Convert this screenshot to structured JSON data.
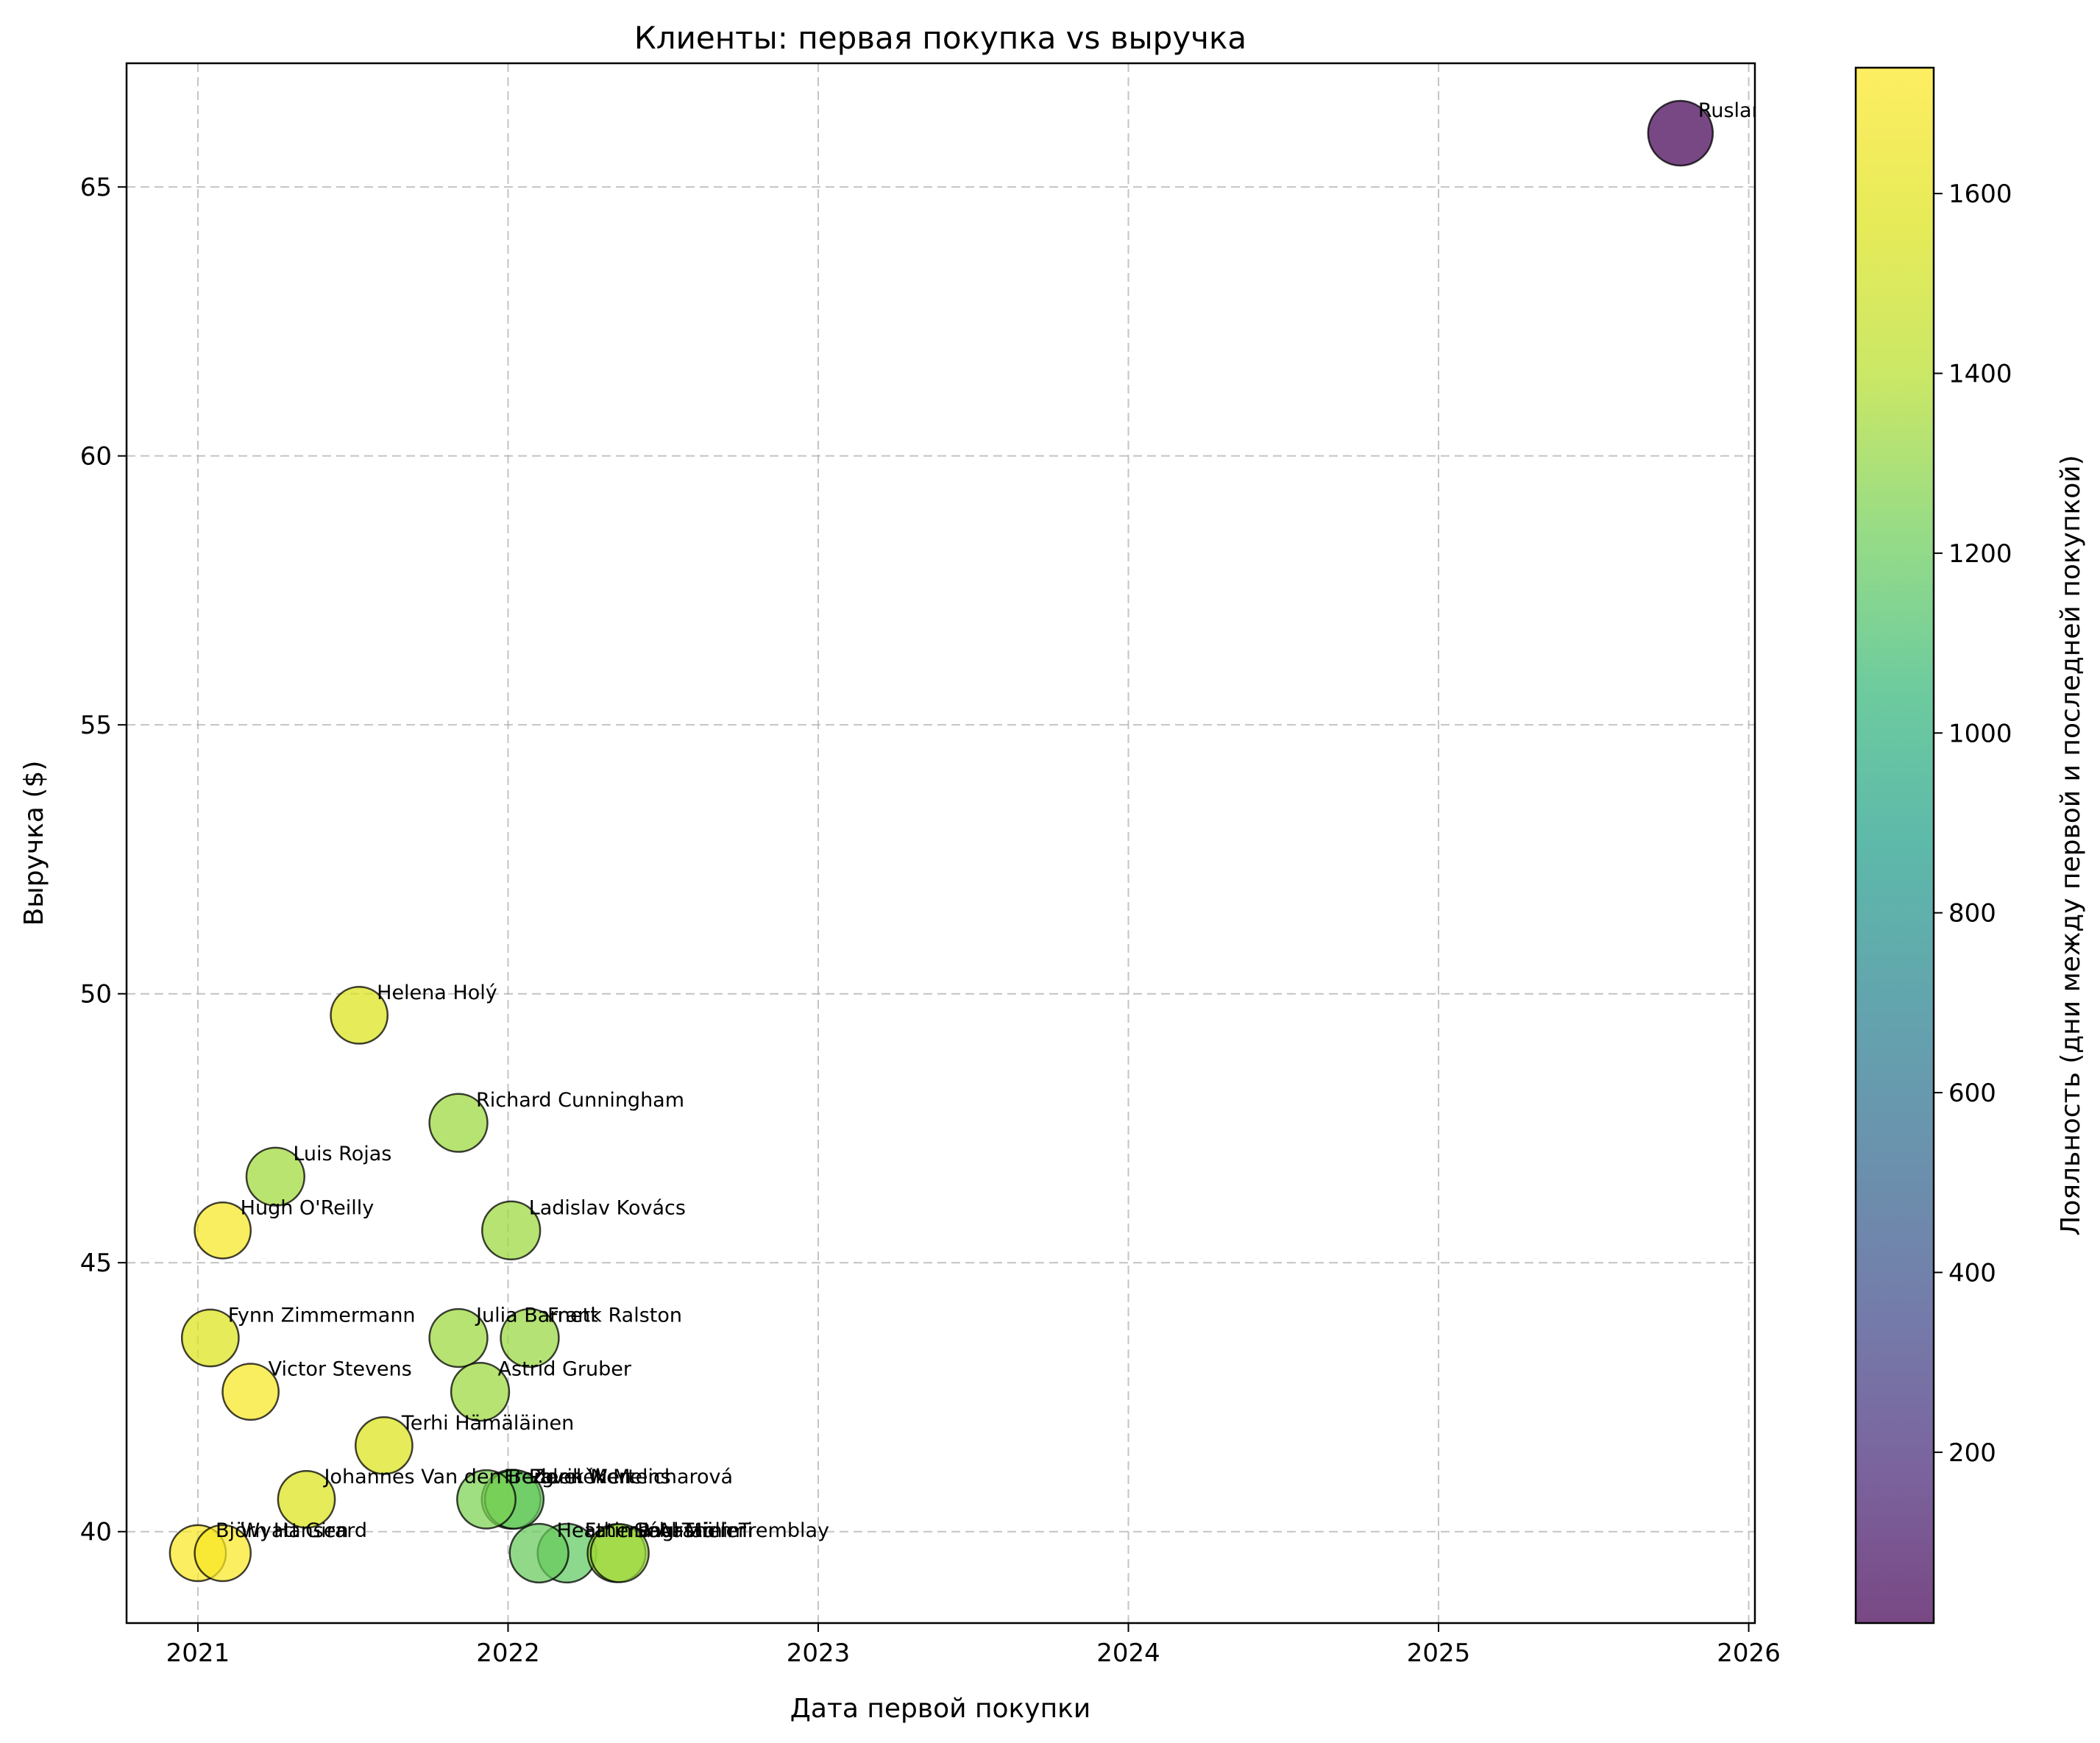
{
  "chart_data": {
    "type": "scatter",
    "title": "Клиенты: первая покупка vs выручка",
    "xlabel": "Дата первой покупки",
    "ylabel": "Выручка ($)",
    "colorbar_label": "Лояльность (дни между первой и последней покупкой)",
    "colormap": "viridis",
    "xlim": [
      2020.77,
      2026.02
    ],
    "ylim": [
      38.3,
      67.3
    ],
    "x_ticks": [
      "2021",
      "2022",
      "2023",
      "2024",
      "2025",
      "2026"
    ],
    "y_ticks": [
      "40",
      "45",
      "50",
      "55",
      "60",
      "65"
    ],
    "colorbar_range": [
      10,
      1740
    ],
    "colorbar_ticks": [
      "200",
      "400",
      "600",
      "800",
      "1000",
      "1200",
      "1400",
      "1600"
    ],
    "grid": true,
    "points": [
      {
        "name": "Ruslan Tuleuo",
        "x": 2025.78,
        "y": 66.0,
        "loyalty": 10
      },
      {
        "name": "Helena Holý",
        "x": 2021.52,
        "y": 49.6,
        "loyalty": 1560
      },
      {
        "name": "Richard Cunningham",
        "x": 2021.84,
        "y": 47.6,
        "loyalty": 1330
      },
      {
        "name": "Luis Rojas",
        "x": 2021.25,
        "y": 46.6,
        "loyalty": 1340
      },
      {
        "name": "Hugh O'Reilly",
        "x": 2021.08,
        "y": 45.6,
        "loyalty": 1710
      },
      {
        "name": "Ladislav Kovács",
        "x": 2022.01,
        "y": 45.6,
        "loyalty": 1330
      },
      {
        "name": "Fynn Zimmermann",
        "x": 2021.04,
        "y": 43.6,
        "loyalty": 1560
      },
      {
        "name": "Julia Barnett",
        "x": 2021.84,
        "y": 43.6,
        "loyalty": 1330
      },
      {
        "name": "Frank Ralston",
        "x": 2022.07,
        "y": 43.6,
        "loyalty": 1320
      },
      {
        "name": "Victor Stevens",
        "x": 2021.17,
        "y": 42.6,
        "loyalty": 1710
      },
      {
        "name": "Astrid Gruber",
        "x": 2021.91,
        "y": 42.6,
        "loyalty": 1330
      },
      {
        "name": "Terhi Hämäläinen",
        "x": 2021.6,
        "y": 41.6,
        "loyalty": 1560
      },
      {
        "name": "Johannes Van den Berg",
        "x": 2021.35,
        "y": 40.6,
        "loyalty": 1560
      },
      {
        "name": "Frederik Mertens",
        "x": 2021.93,
        "y": 40.6,
        "loyalty": 1250
      },
      {
        "name": "Pavel Wen",
        "x": 2022.01,
        "y": 40.6,
        "loyalty": 1180
      },
      {
        "name": "Zdeněk Melicharová",
        "x": 2022.02,
        "y": 40.6,
        "loyalty": 1200
      },
      {
        "name": "Björn Hansen",
        "x": 2021.0,
        "y": 39.6,
        "loyalty": 1720
      },
      {
        "name": "Wyatt Girard",
        "x": 2021.08,
        "y": 39.6,
        "loyalty": 1720
      },
      {
        "name": "Heather Ingram",
        "x": 2022.1,
        "y": 39.6,
        "loyalty": 1200
      },
      {
        "name": "Fatima Al-Tamimi",
        "x": 2022.19,
        "y": 39.6,
        "loyalty": 1180
      },
      {
        "name": "Sébastien Tremblay",
        "x": 2022.35,
        "y": 39.6,
        "loyalty": 1330
      },
      {
        "name": "Paul Müller",
        "x": 2022.36,
        "y": 39.6,
        "loyalty": 1330
      }
    ]
  }
}
